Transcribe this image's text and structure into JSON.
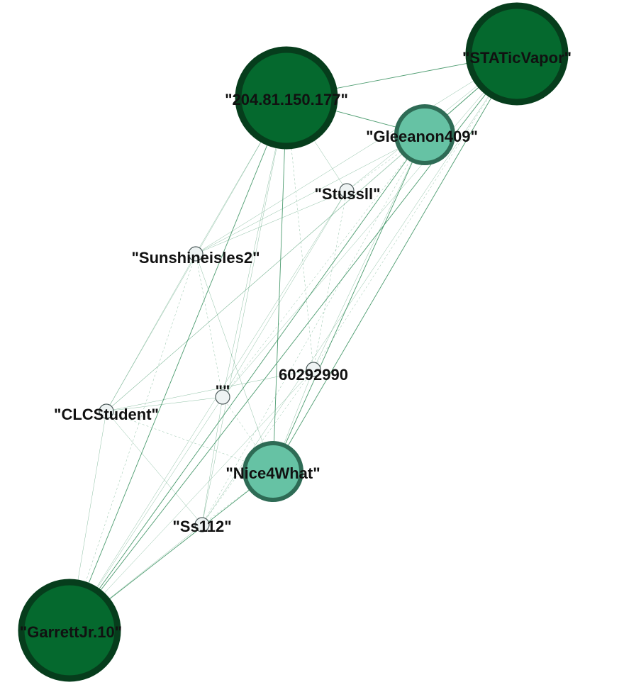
{
  "graph": {
    "nodes": [
      {
        "id": "ip204",
        "label": "\"204.81.150.177\"",
        "size": "large",
        "tone": "dark"
      },
      {
        "id": "static",
        "label": "\"STATicVapor\"",
        "size": "large",
        "tone": "dark"
      },
      {
        "id": "gleeanon",
        "label": "\"Gleeanon409\"",
        "size": "medium",
        "tone": "light"
      },
      {
        "id": "stussll",
        "label": "\"Stussll\"",
        "size": "small",
        "tone": "pale"
      },
      {
        "id": "sunshine",
        "label": "\"Sunshineisles2\"",
        "size": "small",
        "tone": "pale"
      },
      {
        "id": "n6029",
        "label": "60292990",
        "size": "small",
        "tone": "pale"
      },
      {
        "id": "empty",
        "label": "\"\"",
        "size": "small",
        "tone": "pale"
      },
      {
        "id": "clc",
        "label": "\"CLCStudent\"",
        "size": "small",
        "tone": "pale"
      },
      {
        "id": "nice",
        "label": "\"Nice4What\"",
        "size": "medium",
        "tone": "light"
      },
      {
        "id": "ss112",
        "label": "\"Ss112\"",
        "size": "small",
        "tone": "pale"
      },
      {
        "id": "garrett",
        "label": "\"GarrettJr.10\"",
        "size": "large",
        "tone": "dark"
      }
    ],
    "edges": [
      [
        "ip204",
        "static"
      ],
      [
        "ip204",
        "gleeanon"
      ],
      [
        "ip204",
        "stussll"
      ],
      [
        "ip204",
        "sunshine"
      ],
      [
        "ip204",
        "n6029"
      ],
      [
        "ip204",
        "empty"
      ],
      [
        "ip204",
        "clc"
      ],
      [
        "ip204",
        "nice"
      ],
      [
        "ip204",
        "ss112"
      ],
      [
        "ip204",
        "garrett"
      ],
      [
        "static",
        "gleeanon"
      ],
      [
        "static",
        "stussll"
      ],
      [
        "static",
        "sunshine"
      ],
      [
        "static",
        "n6029"
      ],
      [
        "static",
        "empty"
      ],
      [
        "static",
        "clc"
      ],
      [
        "static",
        "nice"
      ],
      [
        "static",
        "ss112"
      ],
      [
        "static",
        "garrett"
      ],
      [
        "gleeanon",
        "stussll"
      ],
      [
        "gleeanon",
        "sunshine"
      ],
      [
        "gleeanon",
        "n6029"
      ],
      [
        "gleeanon",
        "empty"
      ],
      [
        "gleeanon",
        "clc"
      ],
      [
        "gleeanon",
        "nice"
      ],
      [
        "gleeanon",
        "ss112"
      ],
      [
        "gleeanon",
        "garrett"
      ],
      [
        "stussll",
        "sunshine"
      ],
      [
        "stussll",
        "n6029"
      ],
      [
        "stussll",
        "empty"
      ],
      [
        "stussll",
        "garrett"
      ],
      [
        "sunshine",
        "empty"
      ],
      [
        "sunshine",
        "clc"
      ],
      [
        "sunshine",
        "nice"
      ],
      [
        "sunshine",
        "garrett"
      ],
      [
        "n6029",
        "clc"
      ],
      [
        "n6029",
        "nice"
      ],
      [
        "n6029",
        "ss112"
      ],
      [
        "n6029",
        "garrett"
      ],
      [
        "empty",
        "clc"
      ],
      [
        "empty",
        "nice"
      ],
      [
        "empty",
        "ss112"
      ],
      [
        "empty",
        "garrett"
      ],
      [
        "clc",
        "nice"
      ],
      [
        "clc",
        "ss112"
      ],
      [
        "clc",
        "garrett"
      ],
      [
        "nice",
        "ss112"
      ],
      [
        "nice",
        "garrett"
      ],
      [
        "ss112",
        "garrett"
      ]
    ],
    "colors": {
      "dark_fill": "#05692e",
      "dark_stroke": "#063d1c",
      "light_fill": "#66c2a4",
      "light_stroke": "#2e6b55",
      "pale_fill": "#eef3f3",
      "pale_stroke": "#4c5a5a",
      "edge": "#2e8b57"
    }
  }
}
